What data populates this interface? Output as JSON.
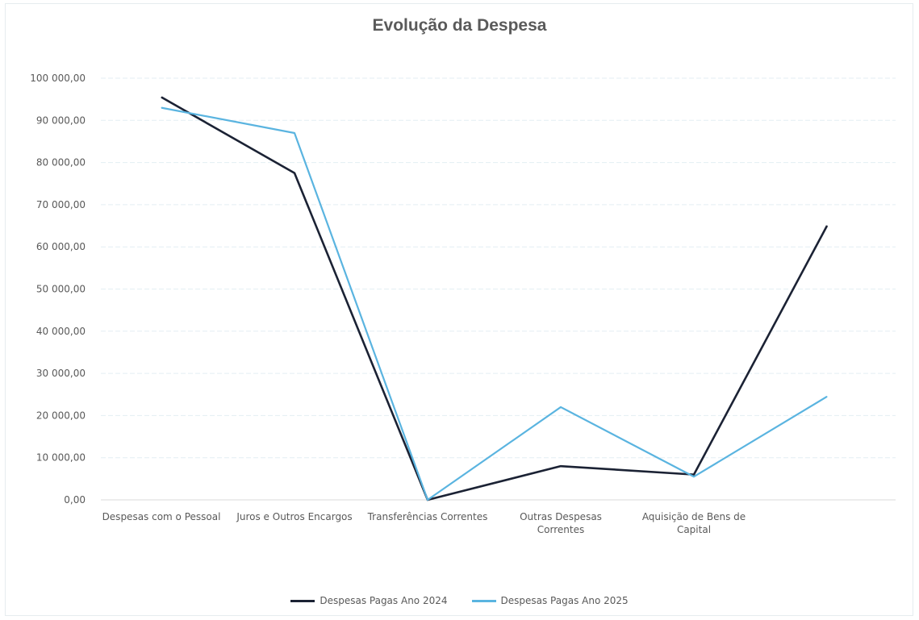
{
  "chart_data": {
    "type": "line",
    "title": "Evolução da Despesa",
    "categories": [
      "Despesas com o Pessoal",
      "Juros e Outros Encargos",
      "Transferências Correntes",
      "Outras Despesas Correntes",
      "Aquisição de Bens de Capital",
      ""
    ],
    "category_lines": [
      [
        "Despesas com o Pessoal"
      ],
      [
        "Juros e Outros Encargos"
      ],
      [
        "Transferências Correntes"
      ],
      [
        "Outras Despesas",
        "Correntes"
      ],
      [
        "Aquisição de Bens de",
        "Capital"
      ],
      []
    ],
    "series": [
      {
        "name": "Despesas Pagas Ano 2024",
        "color": "#1b2234",
        "values": [
          95500,
          77500,
          0,
          8000,
          6000,
          65000
        ]
      },
      {
        "name": "Despesas Pagas Ano 2025",
        "color": "#5ab4e0",
        "values": [
          93000,
          87000,
          0,
          22000,
          5500,
          24500
        ]
      }
    ],
    "ylim": [
      0,
      100000
    ],
    "yticks": [
      0,
      10000,
      20000,
      30000,
      40000,
      50000,
      60000,
      70000,
      80000,
      90000,
      100000
    ],
    "ytick_labels": [
      "0,00",
      "10 000,00",
      "20 000,00",
      "30 000,00",
      "40 000,00",
      "50 000,00",
      "60 000,00",
      "70 000,00",
      "80 000,00",
      "90 000,00",
      "100 000,00"
    ],
    "grid": true,
    "legend_position": "bottom"
  }
}
